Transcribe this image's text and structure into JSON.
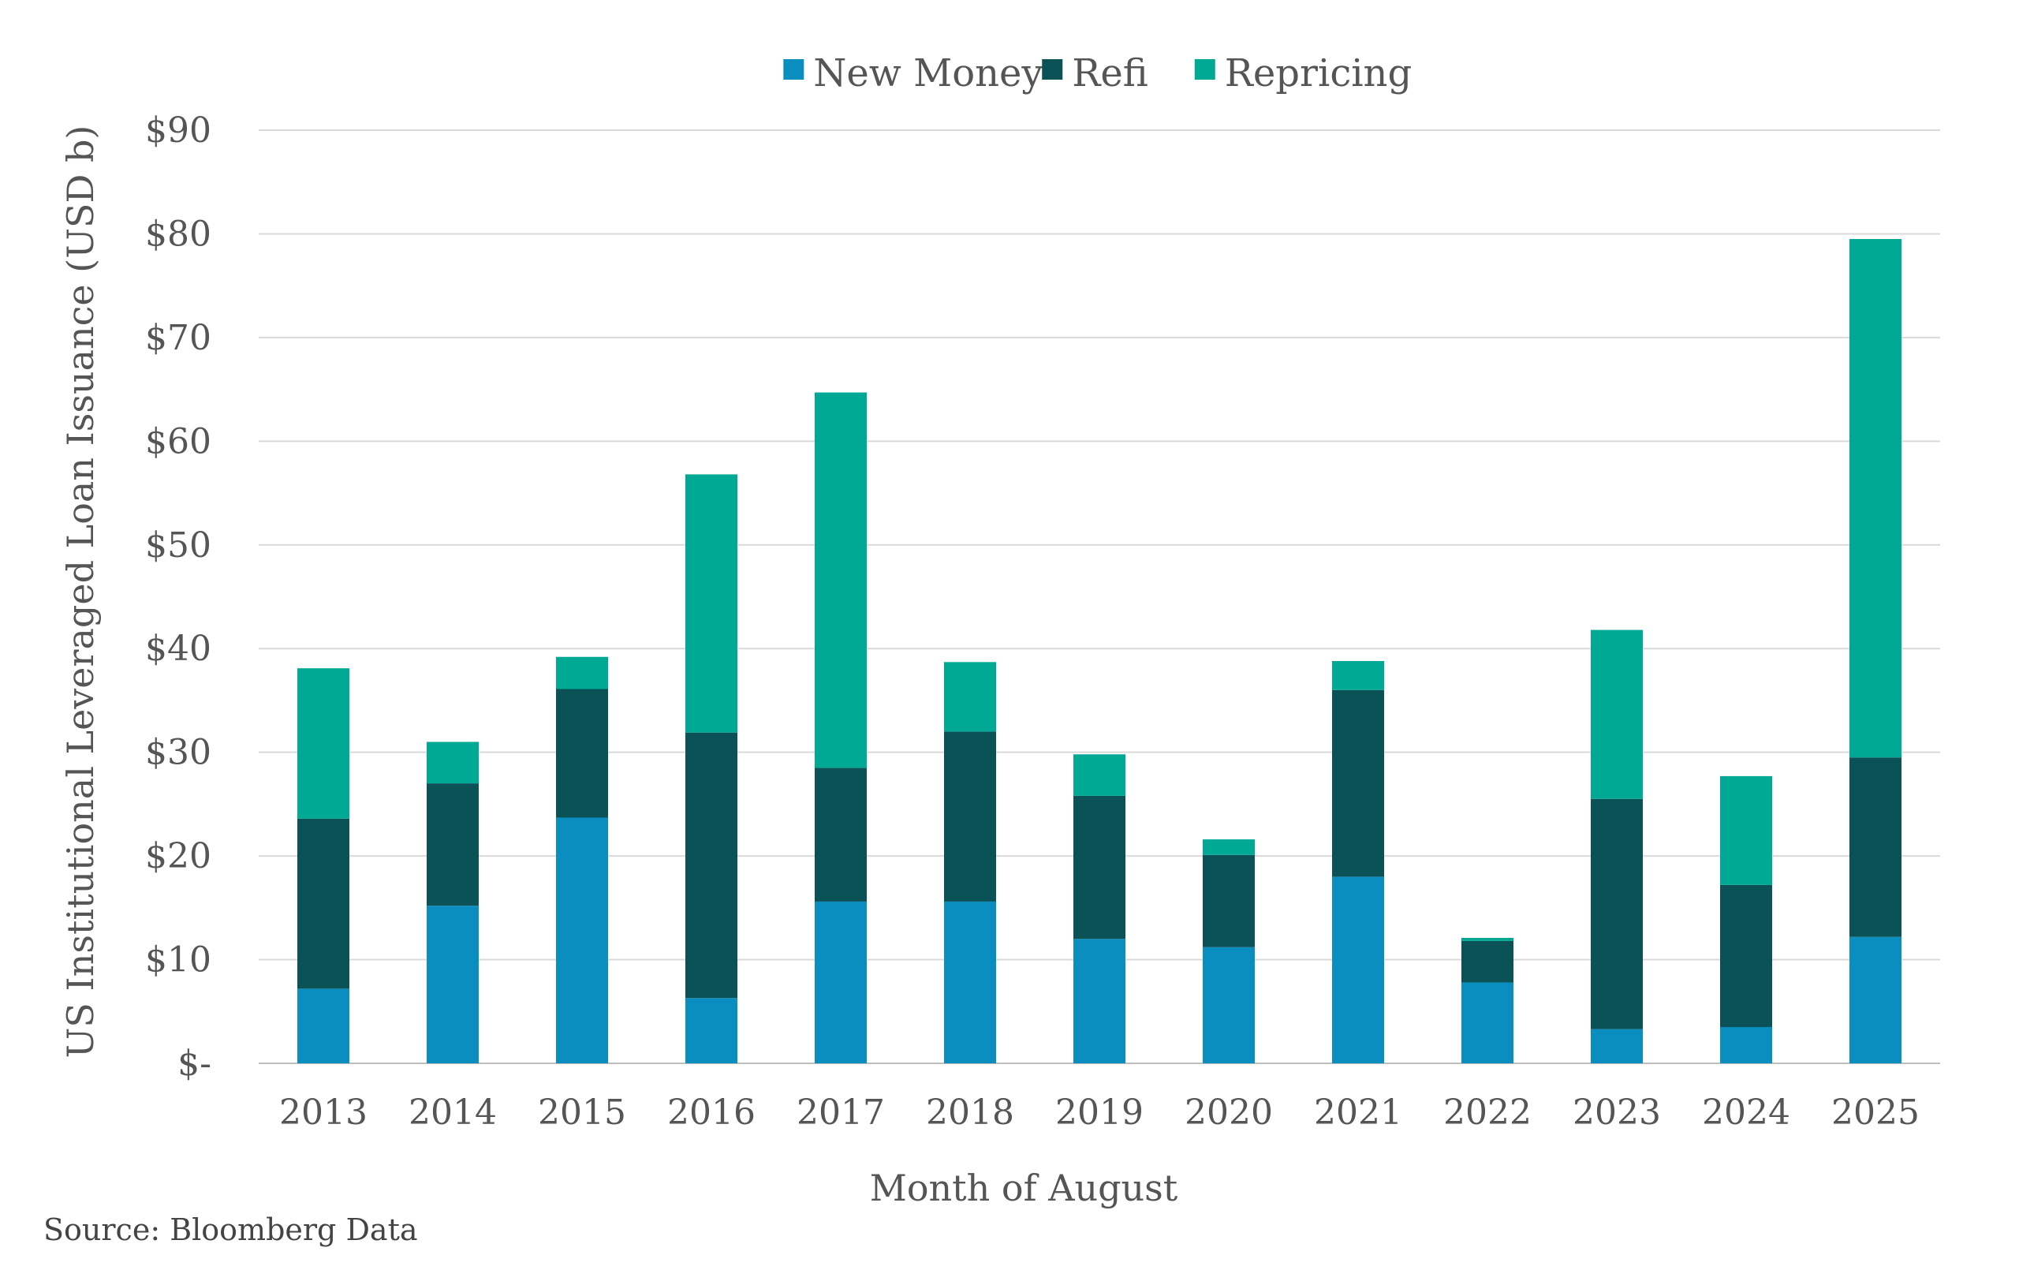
{
  "chart_data": {
    "type": "bar",
    "stacked": true,
    "categories": [
      "2013",
      "2014",
      "2015",
      "2016",
      "2017",
      "2018",
      "2019",
      "2020",
      "2021",
      "2022",
      "2023",
      "2024",
      "2025"
    ],
    "series": [
      {
        "name": "New Money",
        "color": "#0a8dbf",
        "values": [
          7.2,
          15.2,
          23.7,
          6.3,
          15.6,
          15.6,
          12.0,
          11.2,
          18.0,
          7.8,
          3.3,
          3.5,
          12.2
        ]
      },
      {
        "name": "Refi",
        "color": "#0b5257",
        "values": [
          16.4,
          11.8,
          12.4,
          25.6,
          12.9,
          16.4,
          13.8,
          8.9,
          18.0,
          4.0,
          22.2,
          13.7,
          17.3
        ]
      },
      {
        "name": "Repricing",
        "color": "#00a994",
        "values": [
          14.5,
          4.0,
          3.1,
          24.9,
          36.2,
          6.7,
          4.0,
          1.5,
          2.8,
          0.3,
          16.3,
          10.5,
          50.0
        ]
      }
    ],
    "xlabel": "Month of August",
    "ylabel": "US Institutional Leveraged Loan Issuance (USD b)",
    "ylim": [
      0,
      90
    ],
    "yticks": [
      0,
      10,
      20,
      30,
      40,
      50,
      60,
      70,
      80,
      90
    ],
    "ytick_labels": [
      "$-",
      "$10",
      "$20",
      "$30",
      "$40",
      "$50",
      "$60",
      "$70",
      "$80",
      "$90"
    ],
    "grid": true,
    "legend_position": "top-center"
  },
  "source_note": "Source: Bloomberg Data"
}
